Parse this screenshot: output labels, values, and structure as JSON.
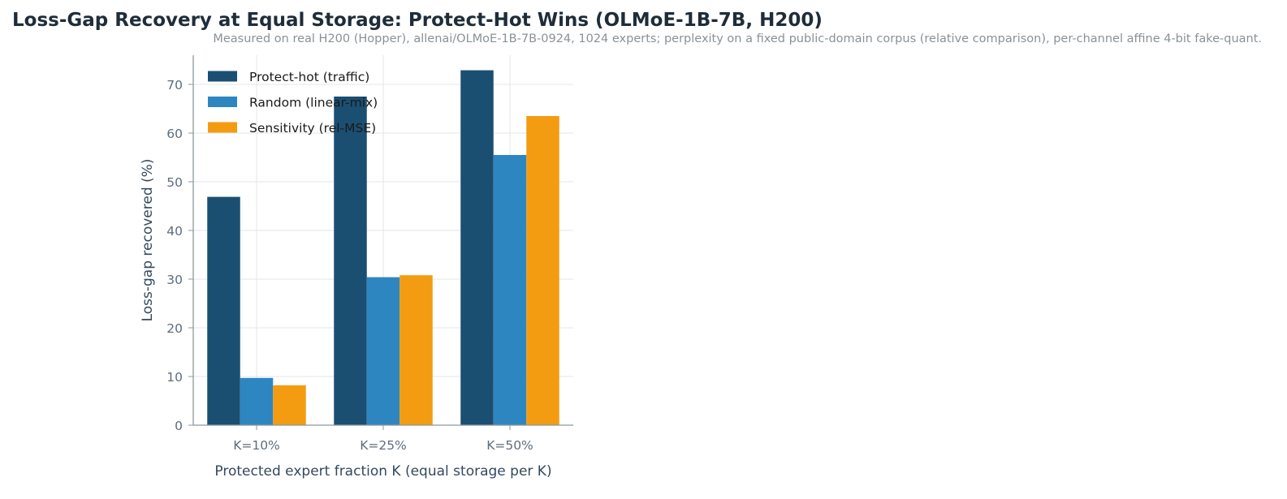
{
  "chart_data": {
    "type": "bar",
    "title": "Loss-Gap Recovery at Equal Storage: Protect-Hot Wins (OLMoE-1B-7B, H200)",
    "subtitle": "Measured on real H200 (Hopper), allenai/OLMoE-1B-7B-0924, 1024 experts; perplexity on a fixed public-domain corpus (relative comparison), per-channel affine 4-bit fake-quant.",
    "xlabel": "Protected expert fraction K (equal storage per K)",
    "ylabel": "Loss-gap recovered (%)",
    "categories": [
      "K=10%",
      "K=25%",
      "K=50%"
    ],
    "series": [
      {
        "name": "Protect-hot (traffic)",
        "color": "#1b4f72",
        "values": [
          46.9,
          67.5,
          72.9
        ]
      },
      {
        "name": "Random (linear-mix)",
        "color": "#2e86c1",
        "values": [
          9.7,
          30.4,
          55.5
        ]
      },
      {
        "name": "Sensitivity (rel-MSE)",
        "color": "#f39c12",
        "values": [
          8.2,
          30.8,
          63.5
        ]
      }
    ],
    "ylim": [
      0,
      76
    ],
    "yticks": [
      0,
      10,
      20,
      30,
      40,
      50,
      60,
      70
    ],
    "grid": true,
    "legend_position": "top-left"
  }
}
